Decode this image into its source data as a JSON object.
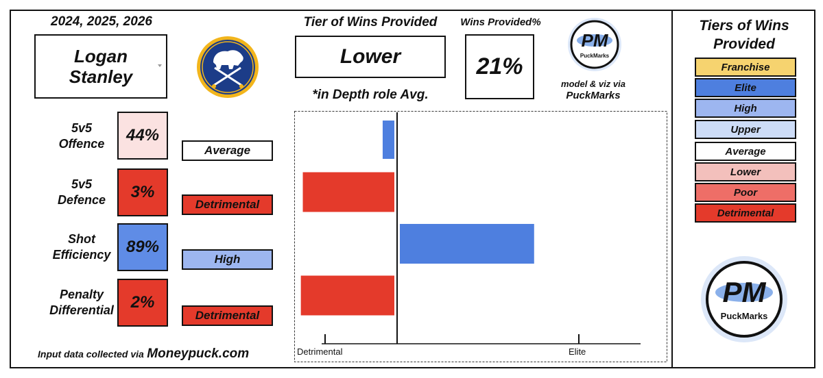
{
  "years": "2024, 2025, 2026",
  "player": {
    "first": "Logan",
    "last": "Stanley"
  },
  "dropdown_icon": "caret-down-icon",
  "team_logo": "buffalo-sabres-logo",
  "tier_header": "Tier of Wins Provided",
  "tier_value": "Lower",
  "role_note": "*in Depth role Avg.",
  "wins_header": "Wins Provided%",
  "wins_value": "21%",
  "credit": {
    "line1": "model & viz via",
    "line2": "PuckMarks"
  },
  "brand": {
    "initials": "PM",
    "name": "PuckMarks"
  },
  "source_note": {
    "prefix": "Input data collected via",
    "site": "Moneypuck.com"
  },
  "colors": {
    "franchise": "#f6d36f",
    "elite": "#4e7fdf",
    "high": "#9db6f0",
    "upper": "#cddcf7",
    "average": "#ffffff",
    "lower": "#f3c0bc",
    "poor": "#ee6e67",
    "detrimental": "#e43a2b",
    "pct_light_pink": "#fbe2e1"
  },
  "metrics": [
    {
      "label_l1": "5v5",
      "label_l2": "Offence",
      "pct": "44%",
      "tier": "Average"
    },
    {
      "label_l1": "5v5",
      "label_l2": "Defence",
      "pct": "3%",
      "tier": "Detrimental"
    },
    {
      "label_l1": "Shot",
      "label_l2": "Efficiency",
      "pct": "89%",
      "tier": "High"
    },
    {
      "label_l1": "Penalty",
      "label_l2": "Differential",
      "pct": "2%",
      "tier": "Detrimental"
    }
  ],
  "legend": {
    "title_l1": "Tiers of Wins",
    "title_l2": "Provided",
    "items": [
      "Franchise",
      "Elite",
      "High",
      "Upper",
      "Average",
      "Lower",
      "Poor",
      "Detrimental"
    ]
  },
  "chart_data": {
    "type": "bar",
    "orientation": "horizontal",
    "categories": [
      "5v5 Offence",
      "5v5 Defence",
      "Shot Efficiency",
      "Penalty Differential"
    ],
    "values": [
      44,
      3,
      89,
      2
    ],
    "center": 50,
    "xlim": [
      0,
      100
    ],
    "tick_labels": [
      "Detrimental",
      "Elite"
    ],
    "bar_colors": [
      "#4e7fdf",
      "#e43a2b",
      "#4e7fdf",
      "#e43a2b"
    ]
  }
}
